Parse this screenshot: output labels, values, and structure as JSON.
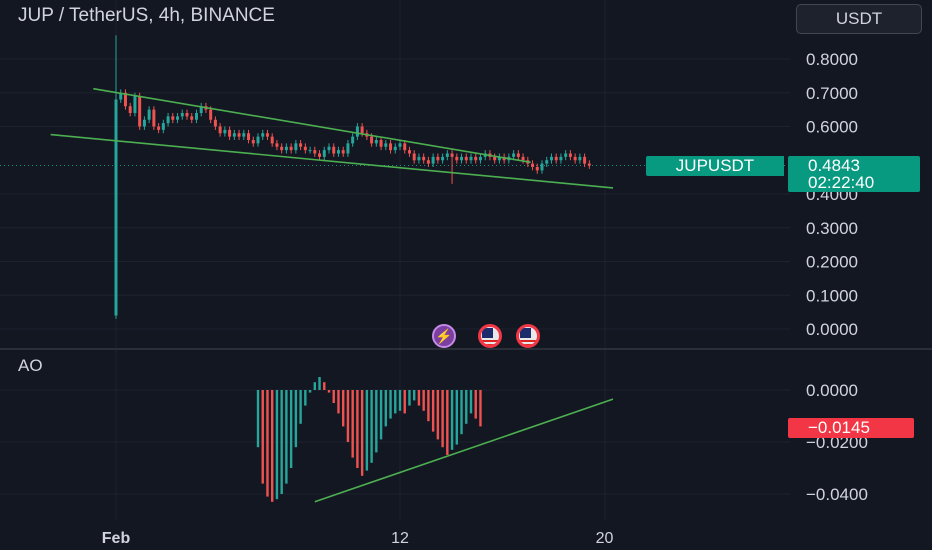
{
  "header": {
    "title": "JUP / TetherUS, 4h, BINANCE",
    "currency_button": "USDT"
  },
  "price_tag": {
    "symbol": "JUPUSDT",
    "price": "0.4843",
    "countdown": "02:22:40"
  },
  "indicator": {
    "name": "AO",
    "value_tag": "−0.0145"
  },
  "event_icons": [
    "lightning-icon",
    "us-flag-icon",
    "us-flag-icon"
  ],
  "colors": {
    "up": "#26a69a",
    "down": "#ef5350",
    "trendline": "#4caf50",
    "background": "#131722",
    "price_label": "#089981",
    "ao_label": "#f23645"
  },
  "chart_data": [
    {
      "type": "candlestick",
      "title": "JUP / TetherUS, 4h, BINANCE",
      "ylim": [
        0.0,
        0.85
      ],
      "y_ticks": [
        "0.8000",
        "0.7000",
        "0.6000",
        "0.4000",
        "0.3000",
        "0.2000",
        "0.1000",
        "0.0000"
      ],
      "x_ticks": [
        "Feb",
        "12",
        "20"
      ],
      "x_range_days": [
        -0.8,
        22.3
      ],
      "last_price": 0.4843,
      "candles_close": [
        0.68,
        0.7,
        0.66,
        0.64,
        0.69,
        0.6,
        0.62,
        0.65,
        0.6,
        0.59,
        0.61,
        0.63,
        0.62,
        0.63,
        0.64,
        0.63,
        0.62,
        0.64,
        0.66,
        0.65,
        0.62,
        0.6,
        0.58,
        0.59,
        0.57,
        0.58,
        0.57,
        0.58,
        0.56,
        0.55,
        0.57,
        0.58,
        0.57,
        0.55,
        0.54,
        0.53,
        0.54,
        0.53,
        0.55,
        0.54,
        0.53,
        0.53,
        0.52,
        0.51,
        0.53,
        0.54,
        0.52,
        0.53,
        0.52,
        0.55,
        0.57,
        0.6,
        0.58,
        0.57,
        0.55,
        0.56,
        0.54,
        0.55,
        0.53,
        0.54,
        0.55,
        0.53,
        0.52,
        0.5,
        0.51,
        0.5,
        0.49,
        0.51,
        0.5,
        0.51,
        0.52,
        0.51,
        0.5,
        0.51,
        0.5,
        0.51,
        0.5,
        0.51,
        0.52,
        0.51,
        0.5,
        0.51,
        0.5,
        0.51,
        0.52,
        0.51,
        0.5,
        0.49,
        0.48,
        0.47,
        0.49,
        0.5,
        0.51,
        0.5,
        0.51,
        0.52,
        0.51,
        0.5,
        0.51,
        0.49,
        0.4843
      ],
      "trendlines": [
        {
          "from": [
            -0.8,
            0.712
          ],
          "to": [
            14.6,
            0.494
          ]
        },
        {
          "from": [
            -2.3,
            0.576
          ],
          "to": [
            17.5,
            0.418
          ]
        }
      ]
    },
    {
      "type": "histogram",
      "title": "AO",
      "ylim": [
        -0.045,
        0.006
      ],
      "y_ticks": [
        "0.0000",
        "−0.0200",
        "−0.0400"
      ],
      "current_value": -0.0145,
      "values": [
        -0.022,
        -0.036,
        -0.041,
        -0.043,
        -0.042,
        -0.04,
        -0.036,
        -0.03,
        -0.022,
        -0.013,
        -0.006,
        -0.001,
        0.003,
        0.005,
        0.003,
        -0.001,
        -0.005,
        -0.009,
        -0.014,
        -0.02,
        -0.026,
        -0.03,
        -0.033,
        -0.031,
        -0.028,
        -0.024,
        -0.019,
        -0.014,
        -0.011,
        -0.009,
        -0.008,
        -0.009,
        -0.006,
        -0.004,
        -0.006,
        -0.008,
        -0.012,
        -0.016,
        -0.019,
        -0.022,
        -0.025,
        -0.023,
        -0.021,
        -0.017,
        -0.013,
        -0.009,
        -0.011,
        -0.014
      ],
      "trendline": {
        "from": [
          7.0,
          -0.043
        ],
        "to": [
          17.5,
          -0.0035
        ]
      }
    }
  ]
}
